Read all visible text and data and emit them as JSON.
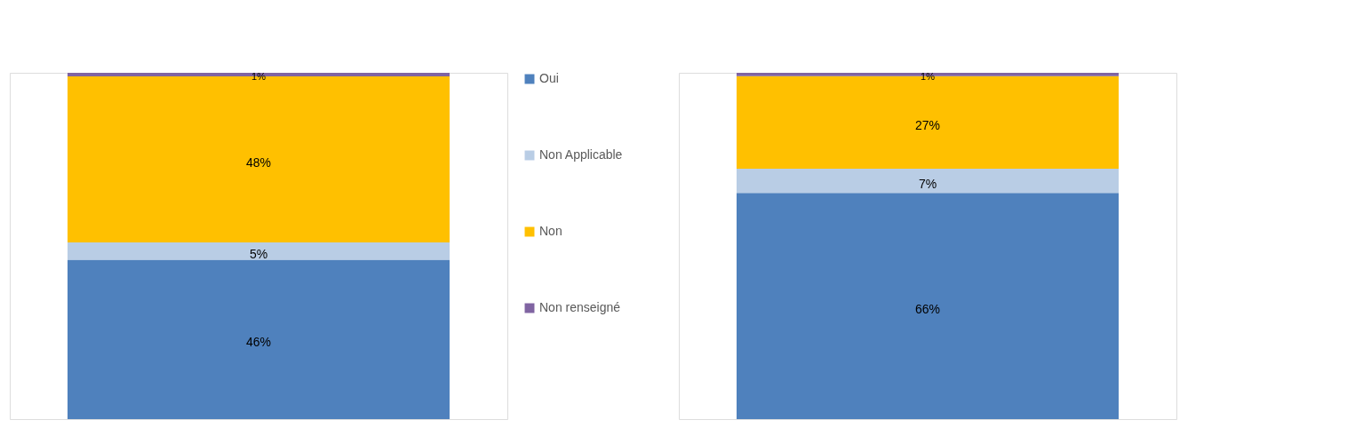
{
  "chart_data": [
    {
      "type": "bar",
      "categories": [
        null
      ],
      "stacked": true,
      "legend": "right",
      "series": [
        {
          "name": "Oui",
          "color": "#4f81bd",
          "values": [
            46
          ],
          "value_labels": [
            "46%"
          ]
        },
        {
          "name": "Non Applicable",
          "color": "#b9cde5",
          "values": [
            5
          ],
          "value_labels": [
            "5%"
          ]
        },
        {
          "name": "Non",
          "color": "#ffc000",
          "values": [
            48
          ],
          "value_labels": [
            "48%"
          ]
        },
        {
          "name": "Non renseigné",
          "color": "#8064a2",
          "values": [
            1
          ],
          "value_labels": [
            "1%"
          ]
        }
      ]
    },
    {
      "type": "bar",
      "categories": [
        null
      ],
      "stacked": true,
      "series": [
        {
          "color": "#4f81bd",
          "values": [
            66
          ],
          "value_labels": [
            "66%"
          ]
        },
        {
          "color": "#b9cde5",
          "values": [
            7
          ],
          "value_labels": [
            "7%"
          ]
        },
        {
          "color": "#ffc000",
          "values": [
            27
          ],
          "value_labels": [
            "27%"
          ]
        },
        {
          "color": "#8064a2",
          "values": [
            1
          ],
          "value_labels": [
            "1%"
          ]
        }
      ]
    }
  ]
}
